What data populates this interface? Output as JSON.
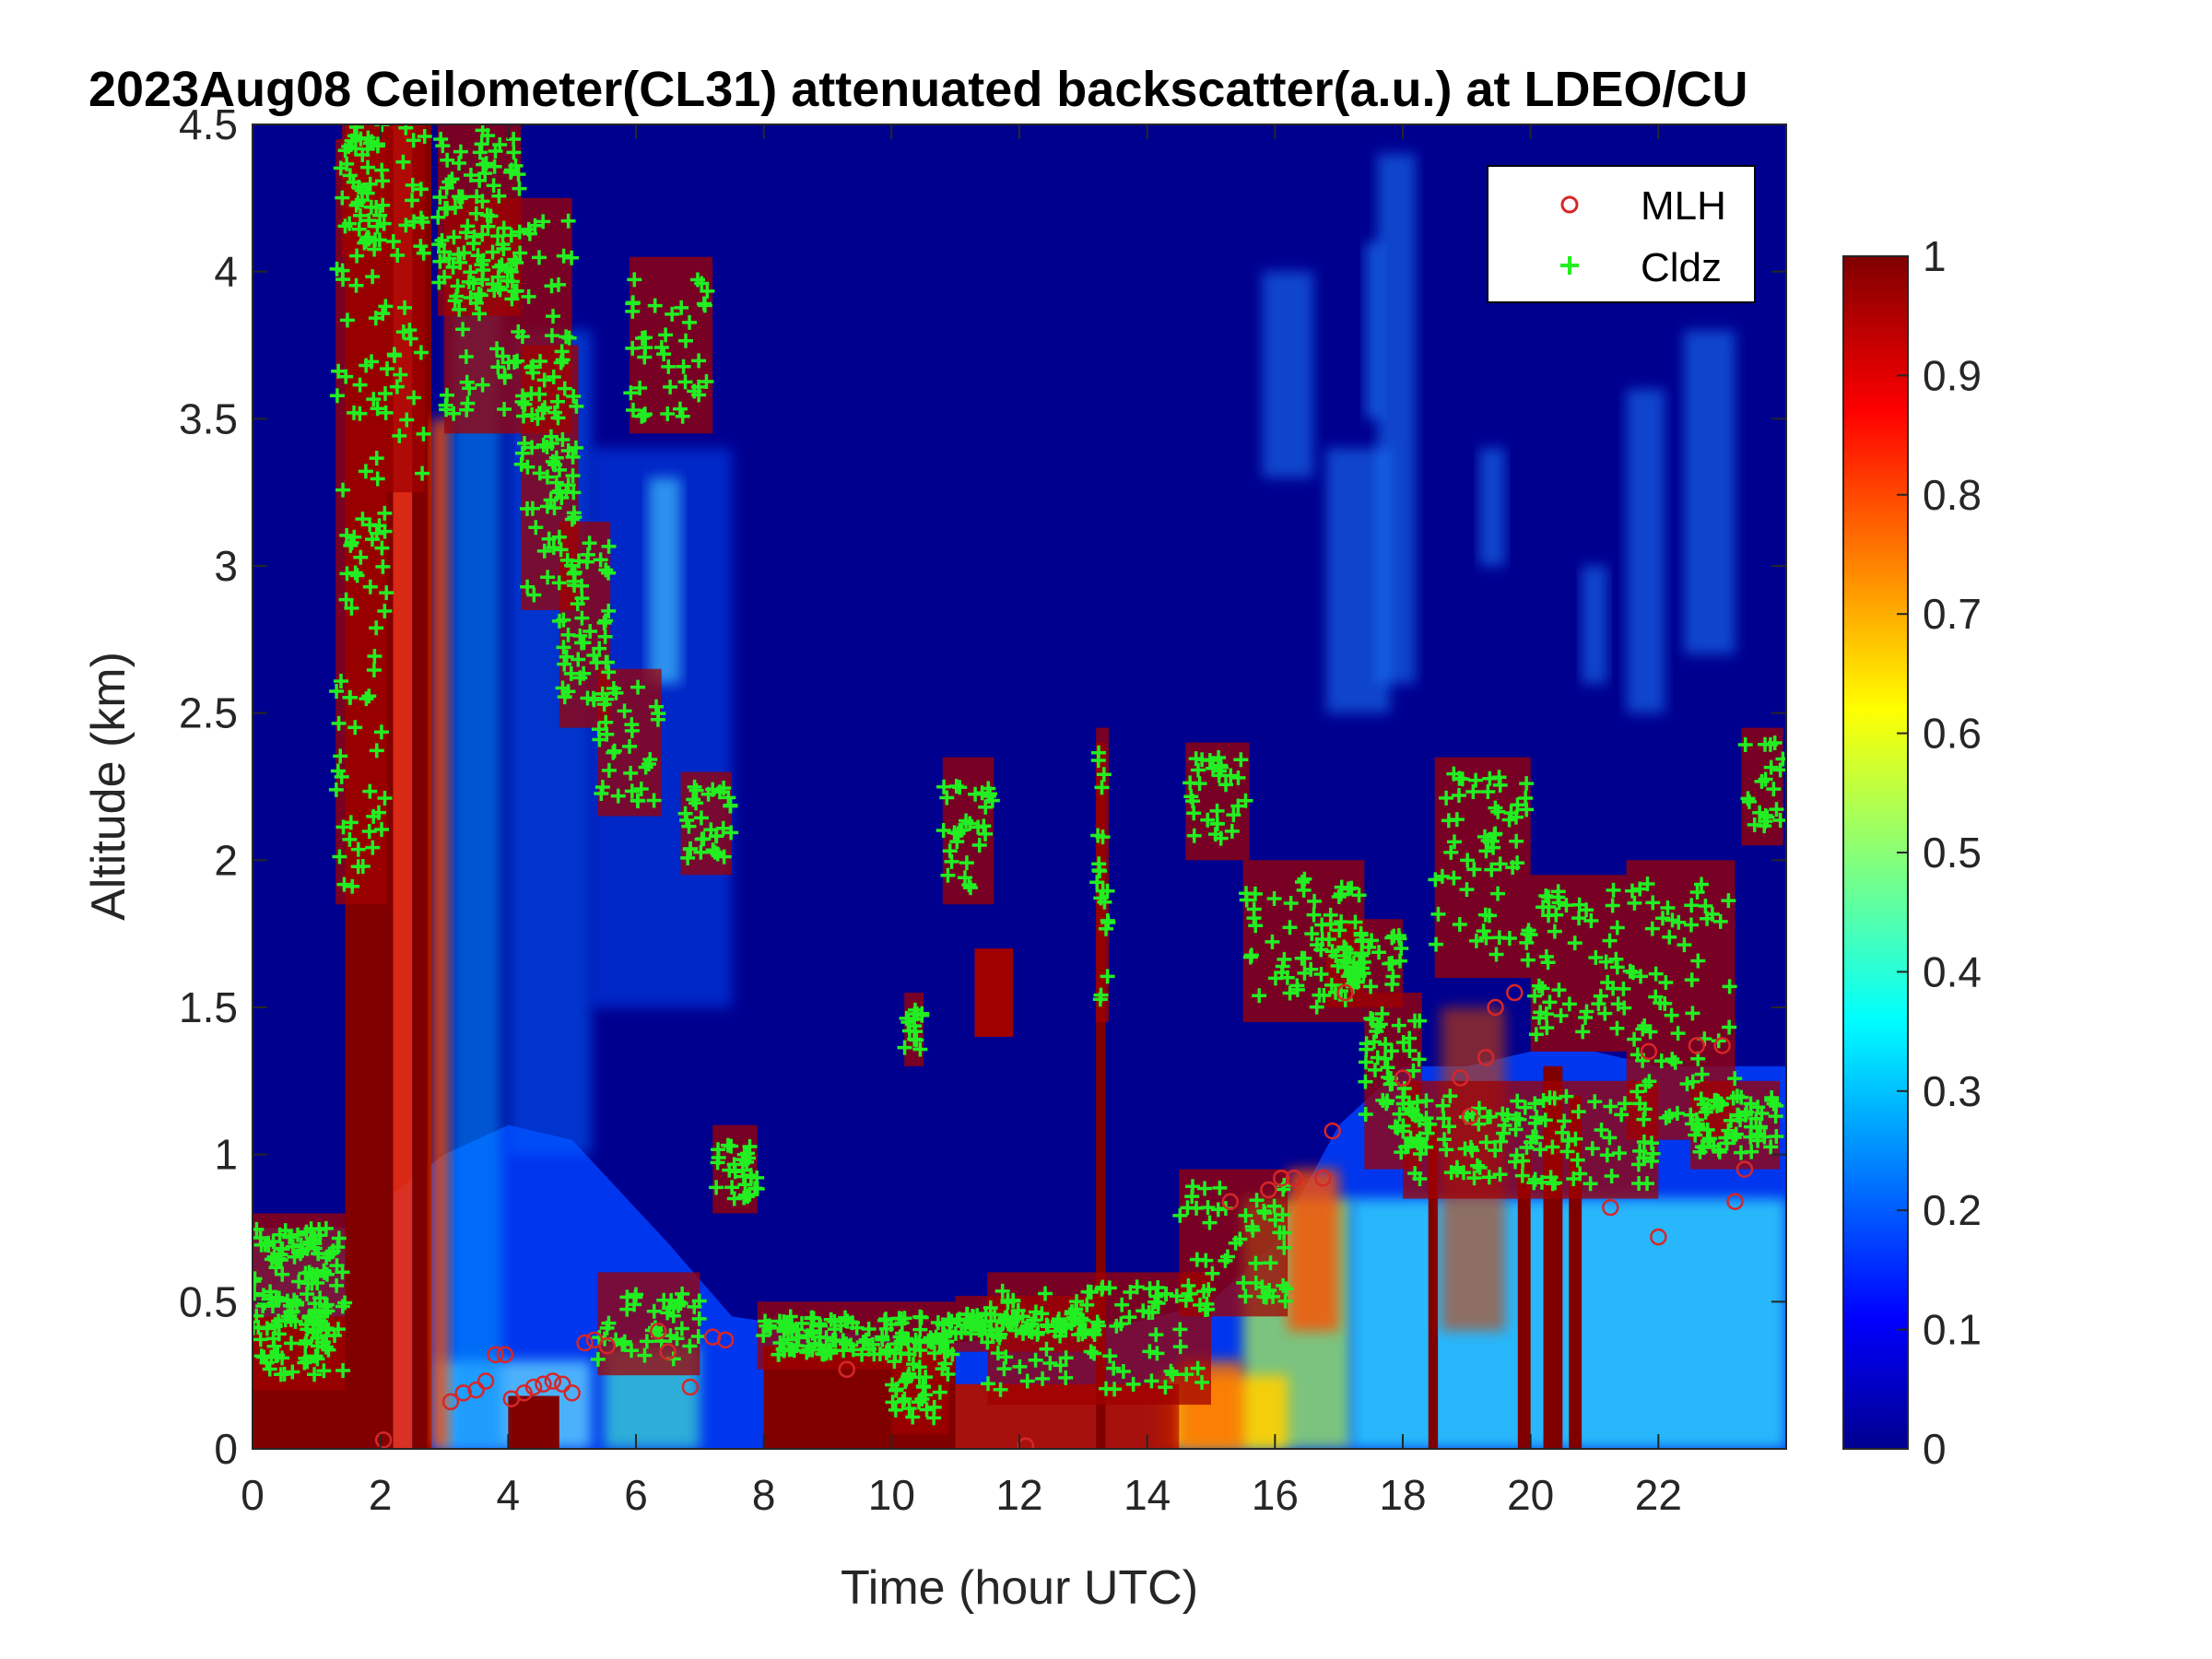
{
  "chart_data": {
    "type": "heatmap",
    "title": "2023Aug08 Ceilometer(CL31) attenuated backscatter(a.u.) at LDEO/CU",
    "xlabel": "Time (hour UTC)",
    "ylabel": "Altitude (km)",
    "xlim": [
      0,
      24
    ],
    "ylim": [
      0,
      4.5
    ],
    "x_ticks": [
      "0",
      "2",
      "4",
      "6",
      "8",
      "10",
      "12",
      "14",
      "16",
      "18",
      "20",
      "22"
    ],
    "y_ticks": [
      "0",
      "0.5",
      "1",
      "1.5",
      "2",
      "2.5",
      "3",
      "3.5",
      "4",
      "4.5"
    ],
    "colorbar": {
      "colormap": "jet",
      "range": [
        0,
        1
      ],
      "ticks": [
        "0",
        "0.1",
        "0.2",
        "0.3",
        "0.4",
        "0.5",
        "0.6",
        "0.7",
        "0.8",
        "0.9",
        "1"
      ]
    },
    "legend": {
      "position": "top-right",
      "entries": [
        "MLH",
        "Cldz"
      ]
    },
    "series": [
      {
        "name": "MLH",
        "marker": "circle",
        "color": "#d62728",
        "points": [
          [
            2.05,
            0.03
          ],
          [
            3.1,
            0.16
          ],
          [
            3.3,
            0.19
          ],
          [
            3.5,
            0.2
          ],
          [
            3.65,
            0.23
          ],
          [
            3.8,
            0.32
          ],
          [
            3.95,
            0.32
          ],
          [
            4.05,
            0.17
          ],
          [
            4.25,
            0.19
          ],
          [
            4.4,
            0.21
          ],
          [
            4.55,
            0.22
          ],
          [
            4.7,
            0.23
          ],
          [
            4.85,
            0.22
          ],
          [
            5.0,
            0.19
          ],
          [
            5.2,
            0.36
          ],
          [
            5.35,
            0.37
          ],
          [
            5.55,
            0.35
          ],
          [
            6.35,
            0.4
          ],
          [
            6.5,
            0.33
          ],
          [
            6.85,
            0.21
          ],
          [
            7.2,
            0.38
          ],
          [
            7.4,
            0.37
          ],
          [
            9.3,
            0.27
          ],
          [
            12.1,
            0.01
          ],
          [
            15.3,
            0.84
          ],
          [
            15.9,
            0.88
          ],
          [
            16.1,
            0.92
          ],
          [
            16.3,
            0.92
          ],
          [
            16.75,
            0.92
          ],
          [
            16.9,
            1.08
          ],
          [
            17.1,
            1.55
          ],
          [
            18.0,
            1.26
          ],
          [
            18.9,
            1.26
          ],
          [
            19.05,
            1.13
          ],
          [
            19.3,
            1.33
          ],
          [
            19.45,
            1.5
          ],
          [
            19.75,
            1.55
          ],
          [
            21.25,
            0.82
          ],
          [
            21.85,
            1.35
          ],
          [
            22.0,
            0.72
          ],
          [
            22.6,
            1.37
          ],
          [
            23.0,
            1.37
          ],
          [
            23.2,
            0.84
          ],
          [
            23.35,
            0.95
          ]
        ]
      },
      {
        "name": "Cldz",
        "marker": "plus",
        "color": "#22ee22",
        "segments": [
          {
            "t": [
              0.0,
              1.45
            ],
            "z": [
              0.25,
              0.75
            ],
            "n": 150
          },
          {
            "t": [
              1.3,
              2.1
            ],
            "z": [
              1.9,
              4.4
            ],
            "n": 90
          },
          {
            "t": [
              1.4,
              2.1
            ],
            "z": [
              4.1,
              4.5
            ],
            "n": 40
          },
          {
            "t": [
              2.1,
              2.7
            ],
            "z": [
              3.3,
              4.5
            ],
            "n": 30
          },
          {
            "t": [
              2.9,
              4.2
            ],
            "z": [
              3.9,
              4.5
            ],
            "n": 80
          },
          {
            "t": [
              3.0,
              5.0
            ],
            "z": [
              3.5,
              4.2
            ],
            "n": 70
          },
          {
            "t": [
              4.2,
              5.1
            ],
            "z": [
              2.9,
              3.7
            ],
            "n": 60
          },
          {
            "t": [
              4.8,
              5.6
            ],
            "z": [
              2.5,
              3.1
            ],
            "n": 50
          },
          {
            "t": [
              5.4,
              6.4
            ],
            "z": [
              2.2,
              2.6
            ],
            "n": 30
          },
          {
            "t": [
              5.9,
              7.2
            ],
            "z": [
              3.5,
              4.0
            ],
            "n": 40
          },
          {
            "t": [
              6.7,
              7.5
            ],
            "z": [
              2.0,
              2.25
            ],
            "n": 30
          },
          {
            "t": [
              7.2,
              7.9
            ],
            "z": [
              0.85,
              1.05
            ],
            "n": 30
          },
          {
            "t": [
              5.4,
              7.0
            ],
            "z": [
              0.3,
              0.55
            ],
            "n": 40
          },
          {
            "t": [
              7.9,
              11.0
            ],
            "z": [
              0.32,
              0.45
            ],
            "n": 130
          },
          {
            "t": [
              10.0,
              10.9
            ],
            "z": [
              0.1,
              0.3
            ],
            "n": 30
          },
          {
            "t": [
              10.2,
              10.5
            ],
            "z": [
              1.35,
              1.5
            ],
            "n": 15
          },
          {
            "t": [
              10.8,
              11.6
            ],
            "z": [
              1.9,
              2.3
            ],
            "n": 30
          },
          {
            "t": [
              11.0,
              13.2
            ],
            "z": [
              0.38,
              0.47
            ],
            "n": 70
          },
          {
            "t": [
              11.5,
              15.0
            ],
            "z": [
              0.2,
              0.55
            ],
            "n": 90
          },
          {
            "t": [
              13.2,
              13.4
            ],
            "z": [
              1.5,
              2.4
            ],
            "n": 20
          },
          {
            "t": [
              14.5,
              16.2
            ],
            "z": [
              0.5,
              0.9
            ],
            "n": 50
          },
          {
            "t": [
              14.6,
              15.6
            ],
            "z": [
              2.05,
              2.35
            ],
            "n": 30
          },
          {
            "t": [
              15.5,
              17.4
            ],
            "z": [
              1.5,
              1.95
            ],
            "n": 70
          },
          {
            "t": [
              16.8,
              18.0
            ],
            "z": [
              1.55,
              1.75
            ],
            "n": 30
          },
          {
            "t": [
              17.4,
              18.3
            ],
            "z": [
              1.0,
              1.5
            ],
            "n": 50
          },
          {
            "t": [
              18.5,
              20.0
            ],
            "z": [
              1.65,
              2.3
            ],
            "n": 60
          },
          {
            "t": [
              18.0,
              22.0
            ],
            "z": [
              0.9,
              1.2
            ],
            "n": 110
          },
          {
            "t": [
              20.0,
              21.5
            ],
            "z": [
              1.4,
              1.9
            ],
            "n": 50
          },
          {
            "t": [
              21.5,
              23.2
            ],
            "z": [
              1.1,
              1.95
            ],
            "n": 60
          },
          {
            "t": [
              22.5,
              23.9
            ],
            "z": [
              1.0,
              1.2
            ],
            "n": 60
          },
          {
            "t": [
              23.3,
              23.95
            ],
            "z": [
              2.1,
              2.4
            ],
            "n": 20
          }
        ]
      }
    ]
  }
}
